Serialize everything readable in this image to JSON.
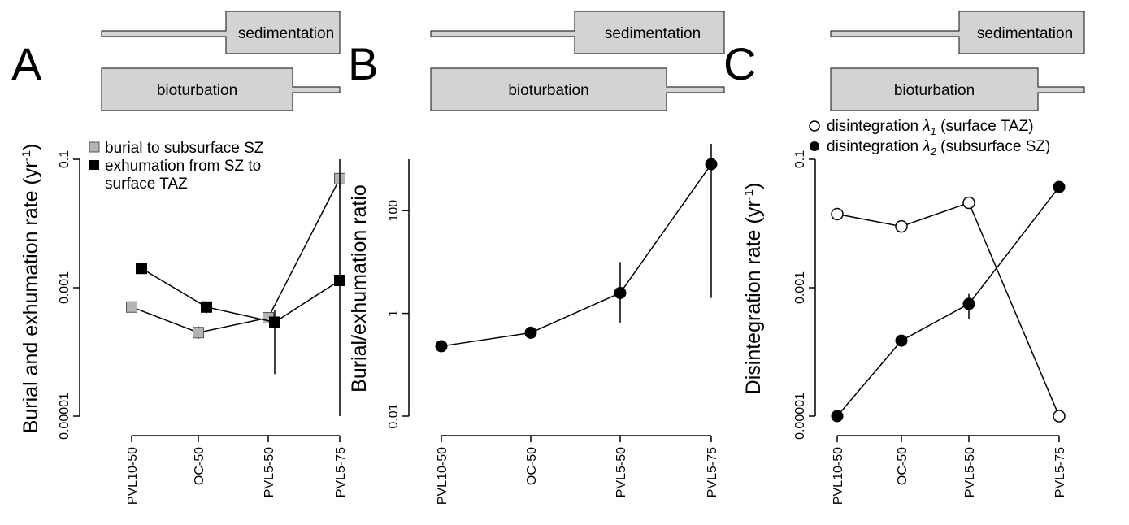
{
  "colors": {
    "gray_marker": "#b4b4b4",
    "black_marker": "#000000",
    "open_marker": "#ffffff",
    "bar_fill": "#d3d3d3"
  },
  "chart_data": [
    {
      "panel": "A",
      "type": "line",
      "sedimentation_label": "sedimentation",
      "bioturbation_label": "bioturbation",
      "ylabel": "Burial and exhumation rate (yr",
      "ylabel_sup": "-1",
      "ylabel_close": ")",
      "yscale": "log",
      "ylim": [
        1e-05,
        0.1
      ],
      "yticks": [
        "0.00001",
        "0.001",
        "0.1"
      ],
      "categories": [
        "PVL10-50",
        "OC-50",
        "PVL5-50",
        "PVL5-75"
      ],
      "legend": [
        {
          "label": "burial to subsurface SZ",
          "marker": "gray-square"
        },
        {
          "label": "exhumation from SZ to",
          "label_line2": "surface TAZ",
          "marker": "black-square"
        }
      ],
      "series": [
        {
          "name": "burial to subsurface SZ",
          "marker": "gray-square",
          "values": [
            0.0005,
            0.0002,
            0.00034,
            0.05
          ],
          "error": [
            null,
            [
              0.00016,
              0.00025
            ],
            null,
            [
              0.035,
              0.06
            ]
          ]
        },
        {
          "name": "exhumation from SZ to surface TAZ",
          "marker": "black-square",
          "values": [
            0.002,
            0.0005,
            0.00029,
            0.0013
          ],
          "error": [
            null,
            [
              0.0004,
              0.0006
            ],
            [
              4.5e-05,
              0.00045
            ],
            [
              1e-05,
              0.1
            ]
          ]
        }
      ]
    },
    {
      "panel": "B",
      "type": "line",
      "sedimentation_label": "sedimentation",
      "bioturbation_label": "bioturbation",
      "ylabel": "Burial/exhumation ratio",
      "yscale": "log",
      "ylim": [
        0.01,
        1000
      ],
      "yticks": [
        "0.01",
        "1",
        "100"
      ],
      "categories": [
        "PVL10-50",
        "OC-50",
        "PVL5-50",
        "PVL5-75"
      ],
      "series": [
        {
          "marker": "black-circle",
          "values": [
            0.23,
            0.42,
            2.5,
            800
          ],
          "error": [
            null,
            null,
            [
              0.65,
              10
            ],
            [
              2,
              2000
            ]
          ]
        }
      ]
    },
    {
      "panel": "C",
      "type": "line",
      "sedimentation_label": "sedimentation",
      "bioturbation_label": "bioturbation",
      "ylabel": "Disintegration rate (yr",
      "ylabel_sup": "-1",
      "ylabel_close": ")",
      "yscale": "log",
      "ylim": [
        1e-05,
        0.1
      ],
      "yticks": [
        "0.00001",
        "0.001",
        "0.1"
      ],
      "categories": [
        "PVL10-50",
        "OC-50",
        "PVL5-50",
        "PVL5-75"
      ],
      "legend": [
        {
          "prefix": "disintegration ",
          "symbol": "λ",
          "sub": "1",
          "suffix": " (surface TAZ)",
          "marker": "open-circle"
        },
        {
          "prefix": "disintegration ",
          "symbol": "λ",
          "sub": "2",
          "suffix": " (subsurface SZ)",
          "marker": "black-circle"
        }
      ],
      "series": [
        {
          "name": "disintegration λ1 (surface TAZ)",
          "marker": "open-circle",
          "values": [
            0.014,
            0.009,
            0.021,
            1e-05
          ],
          "error": [
            null,
            null,
            null,
            null
          ]
        },
        {
          "name": "disintegration λ2 (subsurface SZ)",
          "marker": "black-circle",
          "values": [
            1e-05,
            0.00015,
            0.00056,
            0.037
          ],
          "error": [
            null,
            null,
            [
              0.00033,
              0.0008
            ],
            null
          ]
        }
      ]
    }
  ]
}
